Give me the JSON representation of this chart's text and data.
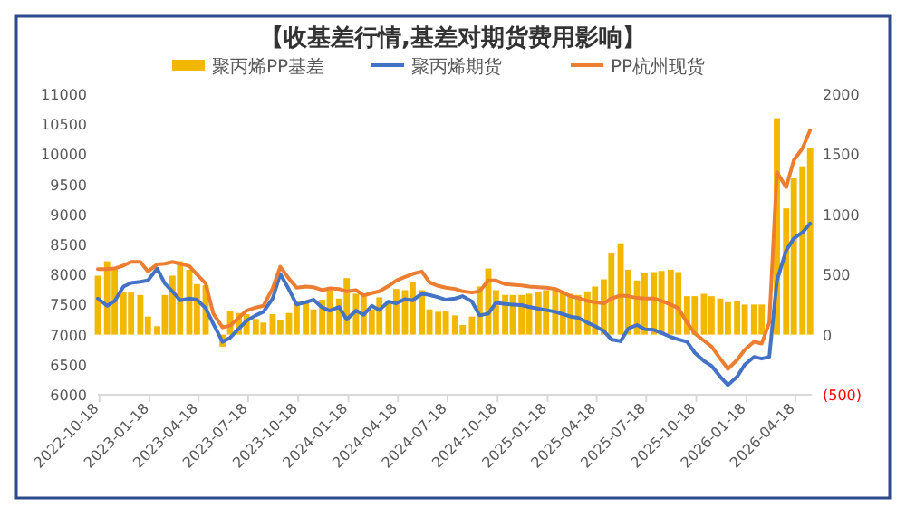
{
  "chart_data": {
    "type": "line",
    "title": "【收基差行情,基差对期货费用影响】",
    "legend": "top",
    "x": [
      "2022-10-15",
      "2022-11-01",
      "2022-11-15",
      "2022-12-01",
      "2022-12-15",
      "2023-01-01",
      "2023-01-15",
      "2023-02-01",
      "2023-02-15",
      "2023-03-01",
      "2023-03-15",
      "2023-04-01",
      "2023-04-15",
      "2023-05-01",
      "2023-05-15",
      "2023-06-01",
      "2023-06-15",
      "2023-07-01",
      "2023-07-15",
      "2023-08-01",
      "2023-08-15",
      "2023-09-01",
      "2023-09-15",
      "2023-10-01",
      "2023-10-15",
      "2023-11-01",
      "2023-11-15",
      "2023-12-01",
      "2023-12-15",
      "2024-01-01",
      "2024-01-15",
      "2024-02-01",
      "2024-02-15",
      "2024-03-01",
      "2024-03-15",
      "2024-04-01",
      "2024-04-15",
      "2024-05-01",
      "2024-05-15",
      "2024-06-01",
      "2024-06-15",
      "2024-07-01",
      "2024-07-15",
      "2024-08-01",
      "2024-08-15",
      "2024-09-01",
      "2024-09-15",
      "2024-10-01",
      "2024-10-15",
      "2024-11-01",
      "2024-11-15",
      "2024-12-01",
      "2024-12-15",
      "2025-01-01",
      "2025-01-15",
      "2025-02-01",
      "2025-02-15",
      "2025-03-01",
      "2025-03-15",
      "2025-04-01",
      "2025-04-15",
      "2025-05-01",
      "2025-05-15",
      "2025-06-01",
      "2025-06-15",
      "2025-07-01",
      "2025-07-15",
      "2025-08-01",
      "2025-08-15",
      "2025-09-01",
      "2025-09-15",
      "2025-10-01",
      "2025-10-15",
      "2025-11-01",
      "2025-11-15",
      "2025-12-01",
      "2025-12-15",
      "2026-01-01",
      "2026-01-15",
      "2026-02-01",
      "2026-02-15",
      "2026-03-01",
      "2026-03-15",
      "2026-04-01",
      "2026-04-15",
      "2026-05-01",
      "2026-05-15"
    ],
    "series": [
      {
        "name": "聚丙烯PP基差",
        "type": "bar",
        "axis": "y2",
        "color": "#f2b800",
        "values": [
          490,
          610,
          540,
          350,
          350,
          330,
          150,
          70,
          330,
          490,
          610,
          540,
          420,
          410,
          null,
          -100,
          200,
          180,
          170,
          130,
          100,
          170,
          120,
          180,
          280,
          260,
          210,
          290,
          370,
          300,
          470,
          340,
          320,
          210,
          310,
          260,
          380,
          370,
          440,
          370,
          210,
          190,
          200,
          160,
          80,
          150,
          400,
          550,
          370,
          330,
          330,
          330,
          340,
          360,
          370,
          380,
          360,
          340,
          330,
          360,
          400,
          460,
          680,
          760,
          540,
          450,
          510,
          520,
          530,
          540,
          520,
          320,
          320,
          340,
          320,
          300,
          270,
          280,
          250,
          250,
          250,
          null,
          1800,
          1050,
          1300,
          1400,
          1550
        ]
      },
      {
        "name": "聚丙烯期货",
        "color": "#4472c4",
        "values": [
          7600,
          7480,
          7560,
          7800,
          7860,
          7880,
          7900,
          8100,
          7850,
          7720,
          7570,
          7600,
          7580,
          7440,
          7180,
          6880,
          6950,
          7100,
          7230,
          7320,
          7380,
          7600,
          8010,
          7750,
          7500,
          7540,
          7580,
          7450,
          7400,
          7460,
          7250,
          7400,
          7330,
          7480,
          7410,
          7550,
          7520,
          7590,
          7570,
          7680,
          7660,
          7620,
          7580,
          7600,
          7640,
          7550,
          7320,
          7350,
          7530,
          7510,
          7500,
          7490,
          7460,
          7430,
          7410,
          7380,
          7340,
          7300,
          7280,
          7200,
          7140,
          7060,
          6920,
          6890,
          7100,
          7160,
          7090,
          7080,
          7030,
          6960,
          6920,
          6880,
          6700,
          6560,
          6480,
          6300,
          6160,
          6300,
          6500,
          6630,
          6600,
          6630,
          7900,
          8400,
          8600,
          8700,
          8850
        ]
      },
      {
        "name": "PP杭州现货",
        "color": "#ed7d31",
        "values": [
          8090,
          8090,
          8100,
          8150,
          8210,
          8210,
          8050,
          8170,
          8180,
          8210,
          8180,
          8140,
          8000,
          7850,
          7350,
          7120,
          7150,
          7280,
          7400,
          7450,
          7480,
          7770,
          8130,
          7930,
          7780,
          7800,
          7790,
          7740,
          7770,
          7760,
          7720,
          7740,
          7650,
          7690,
          7720,
          7810,
          7900,
          7960,
          8010,
          8050,
          7870,
          7810,
          7780,
          7760,
          7720,
          7700,
          7720,
          7900,
          7900,
          7840,
          7830,
          7820,
          7800,
          7790,
          7780,
          7760,
          7700,
          7640,
          7610,
          7560,
          7540,
          7520,
          7600,
          7650,
          7640,
          7610,
          7600,
          7600,
          7560,
          7500,
          7440,
          7200,
          7020,
          6900,
          6800,
          6600,
          6430,
          6580,
          6750,
          6880,
          6850,
          7200,
          9700,
          9450,
          9900,
          10100,
          10400
        ]
      }
    ],
    "xlim": [
      "2022-10-15",
      "2026-05-18"
    ],
    "xticks": [
      {
        "value": "2022-10-18",
        "label": "2022-10-18"
      },
      {
        "value": "2023-01-18",
        "label": "2023-01-18"
      },
      {
        "value": "2023-04-18",
        "label": "2023-04-18"
      },
      {
        "value": "2023-07-18",
        "label": "2023-07-18"
      },
      {
        "value": "2023-10-18",
        "label": "2023-10-18"
      },
      {
        "value": "2024-01-18",
        "label": "2024-01-18"
      },
      {
        "value": "2024-04-18",
        "label": "2024-04-18"
      },
      {
        "value": "2024-07-18",
        "label": "2024-07-18"
      },
      {
        "value": "2024-10-18",
        "label": "2024-10-18"
      },
      {
        "value": "2025-01-18",
        "label": "2025-01-18"
      },
      {
        "value": "2025-04-18",
        "label": "2025-04-18"
      },
      {
        "value": "2025-07-18",
        "label": "2025-07-18"
      },
      {
        "value": "2025-10-18",
        "label": "2025-10-18"
      },
      {
        "value": "2026-01-18",
        "label": "2026-01-18"
      },
      {
        "value": "2026-04-18",
        "label": "2026-04-18"
      }
    ],
    "ylim": [
      6000,
      11000
    ],
    "yticks": [
      6000,
      6500,
      7000,
      7500,
      8000,
      8500,
      9000,
      9500,
      10000,
      10500,
      11000
    ],
    "y2lim": [
      -500,
      2000
    ],
    "y2ticks": [
      {
        "value": -500,
        "label": "(500)"
      },
      0,
      500,
      1000,
      1500,
      2000
    ]
  }
}
